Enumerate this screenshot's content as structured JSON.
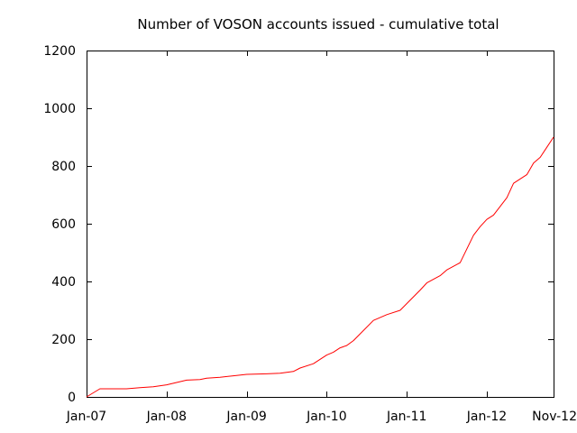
{
  "chart_data": {
    "type": "line",
    "title": "Number of VOSON accounts issued - cumulative total",
    "xlabel": "",
    "ylabel": "",
    "ylim": [
      0,
      1200
    ],
    "y_ticks": [
      0,
      200,
      400,
      600,
      800,
      1000,
      1200
    ],
    "x_tick_labels": [
      "Jan-07",
      "Jan-08",
      "Jan-09",
      "Jan-10",
      "Jan-11",
      "Jan-12",
      "Nov-12"
    ],
    "x_tick_dates": [
      "2007-01",
      "2008-01",
      "2009-01",
      "2010-01",
      "2011-01",
      "2012-01",
      "2012-11"
    ],
    "xlim": [
      "2007-01",
      "2012-11"
    ],
    "grid": false,
    "legend": "none",
    "line_color": "#ff0000",
    "series": [
      {
        "x": [
          "2007-01",
          "2007-03",
          "2007-04",
          "2007-07",
          "2007-09",
          "2007-11",
          "2008-01",
          "2008-04",
          "2008-06",
          "2008-07",
          "2008-09",
          "2008-11",
          "2009-01",
          "2009-04",
          "2009-06",
          "2009-08",
          "2009-09",
          "2009-11",
          "2010-01",
          "2010-02",
          "2010-03",
          "2010-04",
          "2010-05",
          "2010-08",
          "2010-10",
          "2010-12",
          "2011-03",
          "2011-04",
          "2011-06",
          "2011-07",
          "2011-09",
          "2011-11",
          "2011-12",
          "2012-01",
          "2012-02",
          "2012-04",
          "2012-05",
          "2012-07",
          "2012-08",
          "2012-09",
          "2012-10",
          "2012-11"
        ],
        "y": [
          0,
          28,
          28,
          28,
          32,
          35,
          42,
          58,
          60,
          65,
          68,
          73,
          78,
          80,
          82,
          88,
          100,
          115,
          145,
          155,
          170,
          178,
          195,
          265,
          285,
          300,
          370,
          395,
          420,
          440,
          465,
          560,
          590,
          615,
          630,
          690,
          740,
          770,
          810,
          830,
          865,
          900
        ]
      }
    ]
  }
}
